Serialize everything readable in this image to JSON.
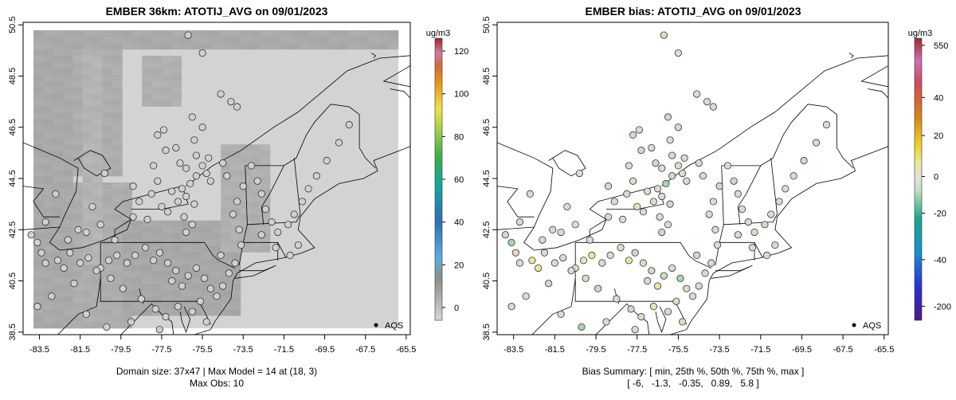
{
  "chart_data": [
    {
      "type": "heatmap",
      "title": "EMBER 36km: ATOTIJ_AVG on 09/01/2023",
      "x_ticks": [
        "-83.5",
        "-81.5",
        "-79.5",
        "-77.5",
        "-75.5",
        "-73.5",
        "-71.5",
        "-69.5",
        "-67.5",
        "-65.5"
      ],
      "y_ticks": [
        "38.5",
        "40.5",
        "42.5",
        "44.5",
        "46.5",
        "48.5",
        "50.5"
      ],
      "xlim": [
        -84.3,
        -65.3
      ],
      "ylim": [
        38.4,
        50.6
      ],
      "colorbar": {
        "unit": "ug/m3",
        "ticks": [
          "0",
          "20",
          "40",
          "60",
          "80",
          "100",
          "120"
        ],
        "tick_values": [
          0,
          20,
          40,
          60,
          80,
          100,
          120
        ],
        "range": [
          -6,
          126
        ]
      },
      "legend": {
        "label": "AQS",
        "placement": "bottom-right"
      },
      "footer": [
        "Domain size: 37x47 | Max Model = 14 at (18, 3)",
        "Max Obs: 10"
      ]
    },
    {
      "type": "scatter",
      "title": "EMBER bias: ATOTIJ_AVG on 09/01/2023",
      "x_ticks": [
        "-83.5",
        "-81.5",
        "-79.5",
        "-77.5",
        "-75.5",
        "-73.5",
        "-71.5",
        "-69.5",
        "-67.5",
        "-65.5"
      ],
      "y_ticks": [
        "38.5",
        "40.5",
        "42.5",
        "44.5",
        "46.5",
        "48.5",
        "50.5"
      ],
      "xlim": [
        -84.3,
        -65.3
      ],
      "ylim": [
        38.4,
        50.6
      ],
      "colorbar": {
        "unit": "ug/m3",
        "ticks": [
          "-200",
          "-40",
          "-20",
          "0",
          "20",
          "40",
          "550"
        ],
        "tick_values": [
          -200,
          -40,
          -20,
          0,
          20,
          40,
          550
        ]
      },
      "legend": {
        "label": "AQS",
        "placement": "bottom-right"
      },
      "bias_summary": {
        "label": "Bias Summary: [ min, 25th %, 50th %, 75th %, max ]",
        "values_text": "[ -6,   -1.3,   -0.35,   0.89,   5.8 ]",
        "values": [
          -6,
          -1.3,
          -0.35,
          0.89,
          5.8
        ]
      }
    }
  ],
  "stations": [
    [
      -76.2,
      50.1,
      0.5
    ],
    [
      -75.5,
      49.4,
      0.2
    ],
    [
      -74.1,
      47.5,
      -0.3
    ],
    [
      -73.8,
      47.3,
      0.1
    ],
    [
      -74.6,
      47.8,
      0.3
    ],
    [
      -77.4,
      46.4,
      0.0
    ],
    [
      -77.7,
      46.2,
      -1.0
    ],
    [
      -76.0,
      46.9,
      -1.2
    ],
    [
      -75.5,
      46.5,
      0.4
    ],
    [
      -75.9,
      46.0,
      -0.5
    ],
    [
      -76.8,
      45.7,
      0.2
    ],
    [
      -77.3,
      45.6,
      -0.6
    ],
    [
      -75.8,
      45.4,
      0.3
    ],
    [
      -75.2,
      45.3,
      -0.4
    ],
    [
      -75.5,
      45.0,
      0.7
    ],
    [
      -76.6,
      45.1,
      -1.1
    ],
    [
      -76.3,
      44.9,
      0.3
    ],
    [
      -75.8,
      44.6,
      -0.9
    ],
    [
      -75.3,
      44.7,
      -0.2
    ],
    [
      -75.1,
      44.4,
      0.1
    ],
    [
      -76.1,
      44.3,
      -2.1
    ],
    [
      -76.5,
      44.1,
      -0.3
    ],
    [
      -77.0,
      44.0,
      0.5
    ],
    [
      -76.3,
      43.8,
      0.2
    ],
    [
      -75.9,
      43.5,
      -0.7
    ],
    [
      -76.7,
      43.6,
      1.1
    ],
    [
      -77.2,
      43.2,
      0.4
    ],
    [
      -76.4,
      43.0,
      -0.5
    ],
    [
      -76.0,
      42.7,
      0.3
    ],
    [
      -76.3,
      42.4,
      -0.8
    ],
    [
      -77.7,
      44.4,
      0.6
    ],
    [
      -78.0,
      43.9,
      -0.2
    ],
    [
      -77.5,
      43.4,
      1.8
    ],
    [
      -78.6,
      43.6,
      0.3
    ],
    [
      -78.9,
      43.0,
      0.9
    ],
    [
      -80.5,
      42.7,
      -0.4
    ],
    [
      -81.2,
      42.4,
      0.2
    ],
    [
      -82.1,
      42.1,
      0.6
    ],
    [
      -83.2,
      42.8,
      0.0
    ],
    [
      -83.6,
      42.0,
      -1.5
    ],
    [
      -83.9,
      42.3,
      -0.8
    ],
    [
      -83.4,
      41.6,
      0.9
    ],
    [
      -83.2,
      41.2,
      0.1
    ],
    [
      -82.6,
      41.3,
      4.5
    ],
    [
      -82.3,
      41.0,
      3.2
    ],
    [
      -82.0,
      41.6,
      -0.3
    ],
    [
      -81.5,
      41.2,
      1.1
    ],
    [
      -81.1,
      41.4,
      -0.5
    ],
    [
      -80.5,
      41.0,
      0.8
    ],
    [
      -80.1,
      41.3,
      2.5
    ],
    [
      -79.7,
      41.5,
      5.8
    ],
    [
      -79.2,
      41.2,
      0.4
    ],
    [
      -78.8,
      41.5,
      -0.3
    ],
    [
      -78.3,
      41.8,
      0.9
    ],
    [
      -77.9,
      41.3,
      3.1
    ],
    [
      -77.6,
      41.6,
      -0.6
    ],
    [
      -77.2,
      41.2,
      1.2
    ],
    [
      -76.8,
      40.9,
      -0.7
    ],
    [
      -77.0,
      40.5,
      0.2
    ],
    [
      -76.5,
      40.3,
      3.8
    ],
    [
      -76.2,
      40.7,
      -0.9
    ],
    [
      -75.8,
      41.0,
      0.3
    ],
    [
      -75.4,
      40.6,
      -1.6
    ],
    [
      -75.1,
      40.2,
      0.5
    ],
    [
      -74.8,
      39.9,
      -0.4
    ],
    [
      -75.6,
      39.7,
      1.4
    ],
    [
      -76.0,
      39.3,
      -0.2
    ],
    [
      -76.7,
      39.5,
      2.1
    ],
    [
      -77.3,
      39.1,
      0.6
    ],
    [
      -77.8,
      39.4,
      -1.3
    ],
    [
      -78.5,
      39.8,
      0.2
    ],
    [
      -79.4,
      40.2,
      -0.6
    ],
    [
      -80.0,
      40.6,
      1.5
    ],
    [
      -80.7,
      40.9,
      0.0
    ],
    [
      -81.8,
      40.4,
      -0.9
    ],
    [
      -82.9,
      39.9,
      0.4
    ],
    [
      -83.6,
      39.5,
      -0.3
    ],
    [
      -81.2,
      39.2,
      0.8
    ],
    [
      -80.2,
      38.7,
      -2.8
    ],
    [
      -79.0,
      38.9,
      -0.5
    ],
    [
      -77.6,
      38.6,
      0.3
    ],
    [
      -77.1,
      38.2,
      -6.0
    ],
    [
      -75.3,
      38.9,
      0.6
    ],
    [
      -74.5,
      40.3,
      -0.5
    ],
    [
      -74.2,
      40.8,
      0.9
    ],
    [
      -73.9,
      41.2,
      -0.2
    ],
    [
      -74.6,
      41.5,
      -1.0
    ],
    [
      -73.6,
      41.9,
      0.2
    ],
    [
      -73.7,
      42.5,
      0.7
    ],
    [
      -74.0,
      43.1,
      -0.4
    ],
    [
      -73.8,
      43.6,
      0.3
    ],
    [
      -73.5,
      44.2,
      -0.6
    ],
    [
      -74.3,
      44.6,
      0.1
    ],
    [
      -74.5,
      45.1,
      -0.3
    ],
    [
      -73.1,
      45.0,
      0.5
    ],
    [
      -72.8,
      44.4,
      -0.7
    ],
    [
      -72.6,
      43.9,
      0.2
    ],
    [
      -72.4,
      43.3,
      -0.2
    ],
    [
      -72.1,
      42.8,
      0.4
    ],
    [
      -72.6,
      42.3,
      -0.5
    ],
    [
      -71.8,
      42.4,
      0.6
    ],
    [
      -71.3,
      42.7,
      -0.8
    ],
    [
      -71.0,
      43.1,
      0.0
    ],
    [
      -70.6,
      43.6,
      0.3
    ],
    [
      -70.3,
      44.1,
      -0.4
    ],
    [
      -69.9,
      44.6,
      0.2
    ],
    [
      -69.4,
      45.2,
      -0.6
    ],
    [
      -68.8,
      45.9,
      0.5
    ],
    [
      -68.3,
      46.6,
      -0.2
    ],
    [
      -71.9,
      41.8,
      0.1
    ],
    [
      -71.2,
      41.5,
      -0.3
    ],
    [
      -70.8,
      41.9,
      0.4
    ],
    [
      -79.8,
      42.1,
      -0.5
    ],
    [
      -78.2,
      42.9,
      0.3
    ],
    [
      -81.6,
      42.5,
      -0.2
    ],
    [
      -80.9,
      43.4,
      0.1
    ],
    [
      -82.7,
      43.9,
      0.4
    ],
    [
      -80.3,
      44.7,
      -0.3
    ],
    [
      -78.9,
      44.2,
      0.2
    ],
    [
      -77.9,
      45.0,
      -0.4
    ]
  ]
}
